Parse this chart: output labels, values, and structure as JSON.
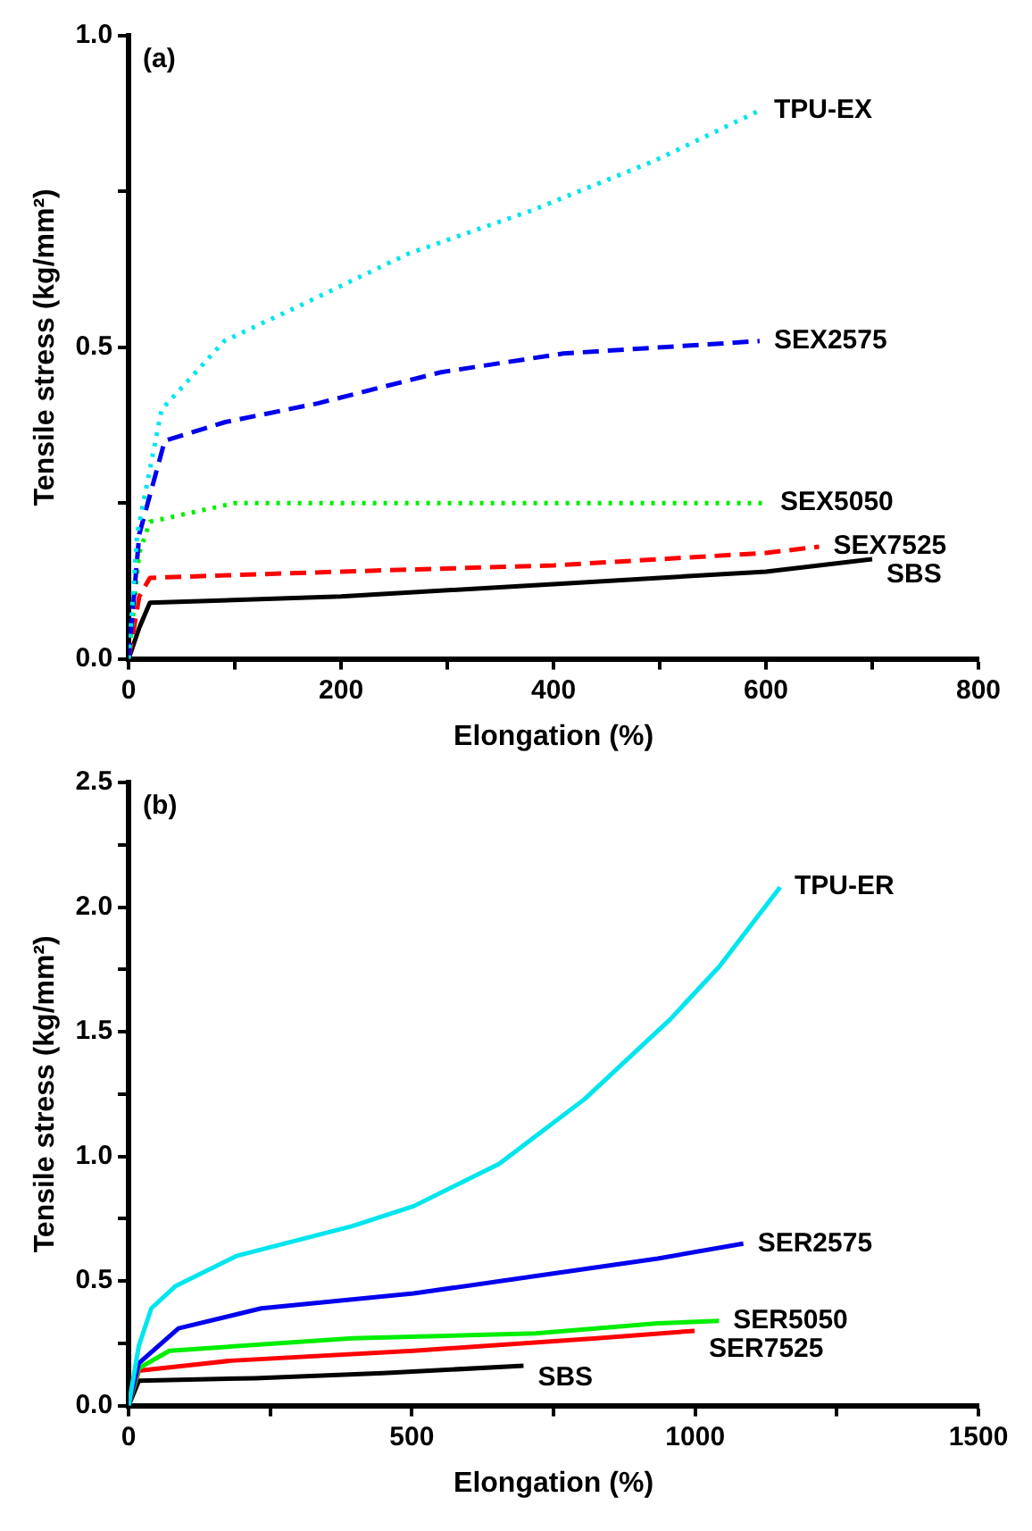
{
  "chart_data": [
    {
      "type": "line",
      "xlabel": "Elongation (%)",
      "ylabel": "Tensile stress (kg/mm²)",
      "annotations": [
        "(a)"
      ],
      "legend": false,
      "grid": false,
      "marker": "none",
      "xlim": [
        0,
        800
      ],
      "xticks": [
        0,
        {
          "value": 100,
          "label": null
        },
        200,
        {
          "value": 300,
          "label": null
        },
        400,
        {
          "value": 500,
          "label": null
        },
        600,
        {
          "value": 700,
          "label": null
        },
        800
      ],
      "ylim": [
        0,
        1
      ],
      "yticks": [
        {
          "value": 0,
          "label": "0.0"
        },
        {
          "value": 0.25,
          "label": null
        },
        0.5,
        {
          "value": 0.75,
          "label": null
        },
        {
          "value": 1,
          "label": "1.0"
        }
      ],
      "series": [
        {
          "name": "TPU-EX",
          "color": "#00e5ee",
          "line_style": "dotted",
          "x": [
            0,
            8,
            31,
            90,
            165,
            263,
            380,
            496,
            594
          ],
          "values": [
            0,
            0.2,
            0.4,
            0.51,
            0.57,
            0.65,
            0.72,
            0.8,
            0.88
          ]
        },
        {
          "name": "SEX2575",
          "color": "#0000ee",
          "line_style": "dashed",
          "x": [
            0,
            10,
            34,
            91,
            178,
            294,
            409,
            594
          ],
          "values": [
            0,
            0.2,
            0.35,
            0.38,
            0.41,
            0.46,
            0.49,
            0.51
          ]
        },
        {
          "name": "SEX5050",
          "color": "#00ee00",
          "line_style": "dotted",
          "x": [
            0,
            10,
            20,
            100,
            300,
            500,
            600
          ],
          "values": [
            0,
            0.17,
            0.22,
            0.25,
            0.25,
            0.25,
            0.25
          ]
        },
        {
          "name": "SEX7525",
          "color": "#ff0000",
          "line_style": "dashed",
          "x": [
            0,
            10,
            20,
            200,
            400,
            600,
            650
          ],
          "values": [
            0,
            0.1,
            0.13,
            0.14,
            0.15,
            0.17,
            0.18
          ]
        },
        {
          "name": "SBS",
          "color": "#000000",
          "line_style": "solid",
          "x": [
            0,
            10,
            20,
            200,
            400,
            600,
            700
          ],
          "values": [
            0,
            0.05,
            0.09,
            0.1,
            0.12,
            0.14,
            0.16
          ]
        }
      ]
    },
    {
      "type": "line",
      "xlabel": "Elongation (%)",
      "ylabel": "Tensile stress (kg/mm²)",
      "annotations": [
        "(b)"
      ],
      "legend": false,
      "grid": false,
      "marker": "none",
      "xlim": [
        0,
        1500
      ],
      "xticks": [
        0,
        {
          "value": 250,
          "label": null
        },
        500,
        {
          "value": 750,
          "label": null
        },
        1000,
        {
          "value": 1250,
          "label": null
        },
        1500
      ],
      "ylim": [
        0,
        2.5
      ],
      "yticks": [
        {
          "value": 0,
          "label": "0.0"
        },
        {
          "value": 0.25,
          "label": null
        },
        0.5,
        {
          "value": 0.75,
          "label": null
        },
        {
          "value": 1,
          "label": "1.0"
        },
        {
          "value": 1.25,
          "label": null
        },
        1.5,
        {
          "value": 1.75,
          "label": null
        },
        {
          "value": 2,
          "label": "2.0"
        },
        {
          "value": 2.25,
          "label": null
        },
        2.5
      ],
      "series": [
        {
          "name": "TPU-ER",
          "color": "#00e5ee",
          "line_style": "solid",
          "x": [
            0,
            18,
            40,
            83,
            190,
            395,
            503,
            654,
            805,
            956,
            1042,
            1150
          ],
          "values": [
            0,
            0.24,
            0.39,
            0.48,
            0.6,
            0.72,
            0.8,
            0.97,
            1.23,
            1.55,
            1.76,
            2.08
          ]
        },
        {
          "name": "SER2575",
          "color": "#0000ee",
          "line_style": "solid",
          "x": [
            0,
            18,
            88,
            234,
            503,
            719,
            934,
            1085
          ],
          "values": [
            0,
            0.17,
            0.31,
            0.39,
            0.45,
            0.52,
            0.59,
            0.65
          ]
        },
        {
          "name": "SER5050",
          "color": "#00ee00",
          "line_style": "solid",
          "x": [
            0,
            18,
            72,
            395,
            719,
            934,
            1042
          ],
          "values": [
            0,
            0.15,
            0.22,
            0.27,
            0.29,
            0.33,
            0.34
          ]
        },
        {
          "name": "SER7525",
          "color": "#ff0000",
          "line_style": "solid",
          "x": [
            0,
            18,
            180,
            503,
            826,
            999
          ],
          "values": [
            0,
            0.14,
            0.18,
            0.22,
            0.27,
            0.3
          ]
        },
        {
          "name": "SBS",
          "color": "#000000",
          "line_style": "solid",
          "x": [
            0,
            18,
            223,
            449,
            697
          ],
          "values": [
            0,
            0.1,
            0.11,
            0.13,
            0.16
          ]
        }
      ]
    }
  ]
}
